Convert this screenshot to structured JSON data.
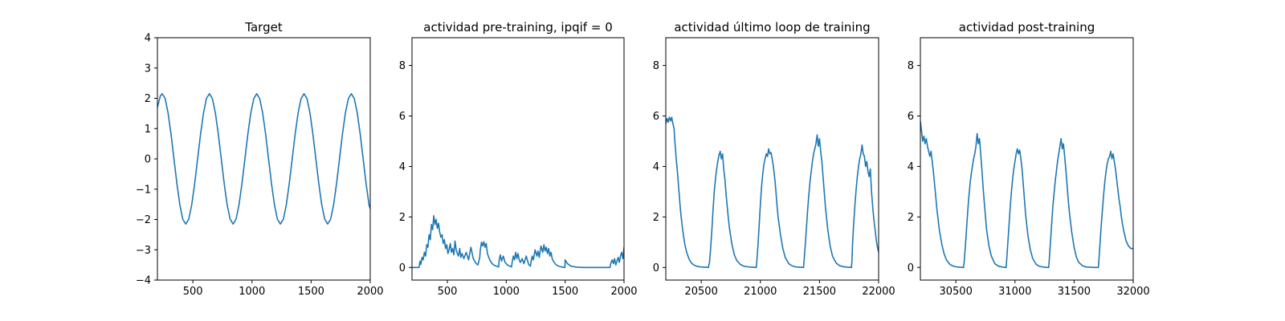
{
  "chart_data": [
    {
      "type": "line",
      "title": "Target",
      "xlim": [
        200,
        2000
      ],
      "ylim": [
        -4,
        4
      ],
      "xticks": [
        500,
        1000,
        1500,
        2000
      ],
      "yticks": [
        -4,
        -3,
        -2,
        -1,
        0,
        1,
        2,
        3,
        4
      ],
      "line_color": "#1f77b4",
      "series": [
        {
          "x": [
            200,
            225,
            240,
            265,
            290,
            315,
            340,
            365,
            390,
            415,
            440,
            465,
            490,
            515,
            540,
            565,
            590,
            615,
            640,
            665,
            690,
            715,
            740,
            765,
            790,
            815,
            840,
            865,
            890,
            915,
            940,
            965,
            990,
            1015,
            1040,
            1065,
            1090,
            1115,
            1140,
            1165,
            1190,
            1215,
            1240,
            1265,
            1290,
            1315,
            1340,
            1365,
            1390,
            1415,
            1440,
            1465,
            1490,
            1515,
            1540,
            1565,
            1590,
            1615,
            1640,
            1665,
            1690,
            1715,
            1740,
            1765,
            1790,
            1815,
            1840,
            1865,
            1890,
            1915,
            1940,
            1965,
            1990,
            2000
          ],
          "y": [
            1.7,
            2.08,
            2.15,
            2.0,
            1.52,
            0.82,
            0.0,
            -0.82,
            -1.52,
            -2.0,
            -2.15,
            -1.99,
            -1.52,
            -0.82,
            0.0,
            0.82,
            1.52,
            2.0,
            2.15,
            1.99,
            1.52,
            0.82,
            0.0,
            -0.82,
            -1.52,
            -1.99,
            -2.15,
            -1.99,
            -1.52,
            -0.82,
            0.0,
            0.82,
            1.52,
            1.99,
            2.15,
            1.99,
            1.52,
            0.82,
            0.0,
            -0.82,
            -1.52,
            -1.99,
            -2.15,
            -1.99,
            -1.52,
            -0.82,
            0.0,
            0.82,
            1.52,
            1.99,
            2.15,
            1.99,
            1.52,
            0.82,
            0.0,
            -0.82,
            -1.52,
            -1.99,
            -2.15,
            -1.99,
            -1.52,
            -0.82,
            0.0,
            0.82,
            1.52,
            1.99,
            2.15,
            1.99,
            1.52,
            0.82,
            0.0,
            -0.82,
            -1.52,
            -1.65
          ]
        }
      ]
    },
    {
      "type": "line",
      "title": "actividad pre-training, ipqif = 0",
      "xlim": [
        200,
        2000
      ],
      "ylim": [
        -0.5,
        9.1
      ],
      "xticks": [
        500,
        1000,
        1500,
        2000
      ],
      "yticks": [
        0,
        2,
        4,
        6,
        8
      ],
      "line_color": "#1f77b4",
      "series": [
        {
          "x": [
            200,
            240,
            260,
            268,
            275,
            285,
            295,
            305,
            315,
            325,
            335,
            345,
            355,
            365,
            375,
            385,
            395,
            405,
            415,
            425,
            435,
            445,
            455,
            465,
            475,
            485,
            495,
            505,
            515,
            525,
            535,
            545,
            555,
            565,
            575,
            585,
            595,
            605,
            615,
            625,
            640,
            660,
            680,
            700,
            720,
            740,
            760,
            775,
            780,
            790,
            800,
            810,
            820,
            830,
            840,
            860,
            880,
            900,
            920,
            935,
            940,
            950,
            960,
            975,
            990,
            1010,
            1030,
            1045,
            1050,
            1060,
            1070,
            1080,
            1090,
            1100,
            1110,
            1120,
            1135,
            1150,
            1170,
            1190,
            1205,
            1210,
            1220,
            1230,
            1245,
            1260,
            1270,
            1280,
            1295,
            1310,
            1320,
            1330,
            1340,
            1350,
            1360,
            1370,
            1380,
            1390,
            1400,
            1420,
            1440,
            1460,
            1480,
            1498,
            1500,
            1520,
            1550,
            1600,
            1650,
            1700,
            1750,
            1800,
            1850,
            1880,
            1890,
            1900,
            1910,
            1920,
            1930,
            1940,
            1950,
            1960,
            1970,
            1980,
            1990,
            2000
          ],
          "y": [
            0.0,
            0.0,
            0.0,
            0.25,
            0.12,
            0.4,
            0.3,
            0.6,
            0.45,
            0.9,
            0.8,
            1.3,
            1.1,
            1.7,
            1.5,
            2.05,
            1.7,
            1.9,
            1.55,
            1.75,
            1.4,
            1.2,
            1.3,
            0.95,
            1.1,
            0.75,
            0.9,
            0.55,
            0.7,
            0.95,
            0.6,
            0.75,
            0.5,
            1.05,
            0.7,
            0.55,
            0.45,
            0.75,
            0.4,
            0.55,
            0.35,
            0.6,
            0.3,
            0.8,
            0.35,
            0.18,
            0.1,
            0.4,
            0.7,
            1.0,
            0.85,
            1.02,
            0.8,
            0.95,
            0.55,
            0.3,
            0.15,
            0.08,
            0.05,
            0.02,
            0.3,
            0.5,
            0.25,
            0.45,
            0.2,
            0.1,
            0.05,
            0.02,
            0.2,
            0.45,
            0.3,
            0.6,
            0.35,
            0.55,
            0.3,
            0.2,
            0.35,
            0.15,
            0.45,
            0.12,
            0.05,
            0.2,
            0.45,
            0.3,
            0.7,
            0.45,
            0.65,
            0.4,
            0.85,
            0.6,
            0.9,
            0.65,
            0.8,
            0.55,
            0.75,
            0.45,
            0.6,
            0.35,
            0.25,
            0.12,
            0.06,
            0.03,
            0.01,
            0.0,
            0.3,
            0.15,
            0.05,
            0.01,
            0.0,
            0.0,
            0.0,
            0.0,
            0.0,
            0.0,
            0.2,
            0.3,
            0.15,
            0.35,
            0.1,
            0.25,
            0.4,
            0.2,
            0.45,
            0.6,
            0.35,
            0.8
          ]
        }
      ]
    },
    {
      "type": "line",
      "title": "actividad último loop de training",
      "xlim": [
        20200,
        22000
      ],
      "ylim": [
        -0.5,
        9.1
      ],
      "xticks": [
        20500,
        21000,
        21500,
        22000
      ],
      "yticks": [
        0,
        2,
        4,
        6,
        8
      ],
      "line_color": "#1f77b4",
      "series": [
        {
          "x": [
            20200,
            20210,
            20220,
            20230,
            20240,
            20250,
            20260,
            20270,
            20275,
            20280,
            20290,
            20300,
            20310,
            20320,
            20330,
            20340,
            20350,
            20360,
            20370,
            20380,
            20400,
            20420,
            20440,
            20460,
            20480,
            20500,
            20520,
            20540,
            20560,
            20570,
            20580,
            20590,
            20600,
            20610,
            20620,
            20630,
            20640,
            20650,
            20660,
            20670,
            20680,
            20690,
            20700,
            20710,
            20720,
            20730,
            20740,
            20760,
            20780,
            20800,
            20830,
            20860,
            20900,
            20940,
            20965,
            20970,
            20980,
            20990,
            21000,
            21010,
            21020,
            21030,
            21040,
            21050,
            21060,
            21070,
            21080,
            21090,
            21100,
            21110,
            21120,
            21130,
            21140,
            21150,
            21170,
            21190,
            21210,
            21240,
            21270,
            21300,
            21340,
            21365,
            21370,
            21380,
            21390,
            21400,
            21410,
            21420,
            21430,
            21440,
            21450,
            21460,
            21470,
            21480,
            21490,
            21500,
            21510,
            21520,
            21530,
            21540,
            21550,
            21570,
            21590,
            21610,
            21640,
            21670,
            21700,
            21740,
            21770,
            21775,
            21780,
            21790,
            21800,
            21810,
            21820,
            21830,
            21840,
            21850,
            21860,
            21870,
            21880,
            21890,
            21900,
            21910,
            21920,
            21930,
            21940,
            21950,
            21960,
            21970,
            21980,
            21990,
            22000
          ],
          "y": [
            5.7,
            5.9,
            5.75,
            5.95,
            5.8,
            5.95,
            5.7,
            5.5,
            5.1,
            4.8,
            4.2,
            3.7,
            3.1,
            2.5,
            2.0,
            1.6,
            1.25,
            0.95,
            0.72,
            0.55,
            0.3,
            0.16,
            0.09,
            0.05,
            0.03,
            0.02,
            0.01,
            0.01,
            0.0,
            0.2,
            0.8,
            1.5,
            2.3,
            3.0,
            3.5,
            3.9,
            4.2,
            4.45,
            4.6,
            4.3,
            4.5,
            3.9,
            3.5,
            2.9,
            2.4,
            1.9,
            1.5,
            0.9,
            0.5,
            0.28,
            0.12,
            0.05,
            0.02,
            0.01,
            0.0,
            0.25,
            0.9,
            1.7,
            2.5,
            3.2,
            3.7,
            4.1,
            4.3,
            4.5,
            4.4,
            4.7,
            4.5,
            4.55,
            4.3,
            4.0,
            3.6,
            3.1,
            2.5,
            2.0,
            1.3,
            0.75,
            0.4,
            0.15,
            0.06,
            0.02,
            0.01,
            0.0,
            0.3,
            0.9,
            1.6,
            2.3,
            2.9,
            3.4,
            3.8,
            4.2,
            4.5,
            4.7,
            4.9,
            5.25,
            4.8,
            5.1,
            4.6,
            4.2,
            3.6,
            3.0,
            2.4,
            1.5,
            0.85,
            0.45,
            0.18,
            0.07,
            0.03,
            0.01,
            0.0,
            0.3,
            1.0,
            1.8,
            2.5,
            3.1,
            3.6,
            4.0,
            4.3,
            4.5,
            4.85,
            4.5,
            4.4,
            4.0,
            4.2,
            3.8,
            3.6,
            3.9,
            3.0,
            2.4,
            1.9,
            1.5,
            1.1,
            0.8,
            0.6
          ]
        }
      ]
    },
    {
      "type": "line",
      "title": "actividad post-training",
      "xlim": [
        30200,
        32000
      ],
      "ylim": [
        -0.5,
        9.1
      ],
      "xticks": [
        30500,
        31000,
        31500,
        32000
      ],
      "yticks": [
        0,
        2,
        4,
        6,
        8
      ],
      "line_color": "#1f77b4",
      "series": [
        {
          "x": [
            30200,
            30210,
            30220,
            30230,
            30240,
            30250,
            30260,
            30270,
            30280,
            30290,
            30300,
            30310,
            30320,
            30330,
            30340,
            30350,
            30360,
            30380,
            30400,
            30420,
            30450,
            30480,
            30510,
            30540,
            30560,
            30565,
            30570,
            30580,
            30590,
            30600,
            30610,
            30620,
            30630,
            30640,
            30650,
            30660,
            30670,
            30680,
            30690,
            30700,
            30710,
            30720,
            30730,
            30740,
            30760,
            30780,
            30800,
            30830,
            30860,
            30900,
            30920,
            30925,
            30930,
            30940,
            30950,
            30960,
            30970,
            30980,
            30990,
            31000,
            31010,
            31020,
            31030,
            31040,
            31050,
            31060,
            31070,
            31080,
            31090,
            31110,
            31130,
            31150,
            31180,
            31210,
            31250,
            31280,
            31285,
            31290,
            31300,
            31310,
            31320,
            31330,
            31340,
            31350,
            31360,
            31370,
            31380,
            31390,
            31400,
            31410,
            31420,
            31430,
            31440,
            31450,
            31460,
            31470,
            31480,
            31500,
            31520,
            31540,
            31570,
            31600,
            31640,
            31680,
            31700,
            31705,
            31710,
            31720,
            31730,
            31740,
            31750,
            31760,
            31770,
            31780,
            31790,
            31800,
            31810,
            31820,
            31830,
            31840,
            31850,
            31860,
            31870,
            31880,
            31890,
            31900,
            31910,
            31920,
            31930,
            31940,
            31950,
            31960,
            31970,
            31980,
            31990,
            32000
          ],
          "y": [
            5.8,
            5.4,
            5.0,
            5.2,
            4.9,
            5.1,
            4.8,
            4.6,
            4.4,
            4.6,
            4.2,
            3.8,
            3.3,
            2.8,
            2.3,
            1.9,
            1.5,
            0.95,
            0.55,
            0.3,
            0.12,
            0.05,
            0.02,
            0.01,
            0.0,
            0.0,
            0.2,
            0.8,
            1.5,
            2.2,
            2.8,
            3.3,
            3.7,
            4.0,
            4.3,
            4.5,
            4.8,
            5.3,
            4.9,
            5.1,
            4.5,
            3.9,
            3.2,
            2.6,
            1.5,
            0.85,
            0.45,
            0.15,
            0.05,
            0.01,
            0.0,
            0.0,
            0.3,
            1.0,
            1.7,
            2.4,
            3.0,
            3.5,
            3.9,
            4.2,
            4.5,
            4.7,
            4.5,
            4.65,
            4.3,
            3.9,
            3.3,
            2.7,
            2.1,
            1.25,
            0.7,
            0.35,
            0.12,
            0.04,
            0.01,
            0.0,
            0.0,
            0.3,
            1.0,
            1.7,
            2.4,
            2.9,
            3.4,
            3.8,
            4.2,
            4.5,
            4.8,
            5.1,
            4.7,
            4.9,
            4.4,
            3.9,
            3.3,
            2.7,
            2.2,
            1.8,
            1.4,
            0.8,
            0.4,
            0.2,
            0.07,
            0.02,
            0.01,
            0.0,
            0.0,
            0.0,
            0.3,
            1.0,
            1.7,
            2.3,
            2.9,
            3.4,
            3.8,
            4.1,
            4.3,
            4.4,
            4.6,
            4.3,
            4.5,
            4.2,
            3.9,
            3.5,
            3.1,
            2.7,
            2.4,
            2.0,
            1.7,
            1.45,
            1.25,
            1.05,
            0.95,
            0.85,
            0.8,
            0.75,
            0.75,
            0.75
          ]
        }
      ]
    }
  ]
}
